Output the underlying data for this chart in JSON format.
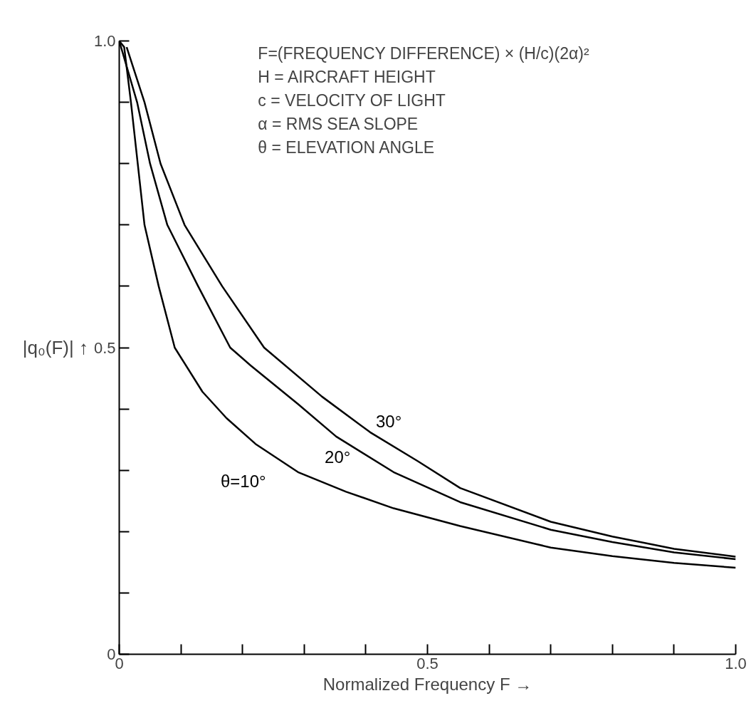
{
  "chart_data": {
    "type": "line",
    "xlabel": "Normalized Frequency F →",
    "ylabel": "|q₀(F)| ↑",
    "annotations": [
      "F=(FREQUENCY DIFFERENCE) × (H/c)(2α)²",
      "H = AIRCRAFT HEIGHT",
      "c = VELOCITY OF LIGHT",
      "α = RMS SEA SLOPE",
      "θ = ELEVATION ANGLE"
    ],
    "series": [
      {
        "name": "θ=10°",
        "color": "#000000",
        "x": [
          0,
          0.008,
          0.019,
          0.03,
          0.041,
          0.064,
          0.09,
          0.135,
          0.174,
          0.221,
          0.29,
          0.368,
          0.445,
          0.553,
          0.7,
          0.8,
          0.9,
          1.0
        ],
        "values": [
          1.0,
          0.99,
          0.9,
          0.8,
          0.7,
          0.6,
          0.5,
          0.428,
          0.385,
          0.343,
          0.297,
          0.265,
          0.238,
          0.209,
          0.174,
          0.16,
          0.149,
          0.141
        ]
      },
      {
        "name": "20°",
        "color": "#000000",
        "x": [
          0,
          0.029,
          0.05,
          0.078,
          0.128,
          0.18,
          0.213,
          0.29,
          0.352,
          0.445,
          0.553,
          0.7,
          0.8,
          0.9,
          1.0
        ],
        "values": [
          1.0,
          0.9,
          0.8,
          0.7,
          0.6,
          0.5,
          0.471,
          0.408,
          0.355,
          0.297,
          0.248,
          0.203,
          0.183,
          0.166,
          0.155
        ]
      },
      {
        "name": "30°",
        "color": "#000000",
        "x": [
          0.012,
          0.041,
          0.067,
          0.106,
          0.167,
          0.235,
          0.329,
          0.407,
          0.484,
          0.553,
          0.7,
          0.8,
          0.9,
          1.0
        ],
        "values": [
          0.99,
          0.9,
          0.8,
          0.7,
          0.6,
          0.5,
          0.42,
          0.362,
          0.315,
          0.271,
          0.216,
          0.192,
          0.172,
          0.159
        ]
      }
    ],
    "xlim": [
      0,
      1.0
    ],
    "ylim": [
      0,
      1.0
    ],
    "xticks": [
      0,
      {
        "value": 0.1,
        "label": null
      },
      {
        "value": 0.2,
        "label": null
      },
      {
        "value": 0.3,
        "label": null
      },
      {
        "value": 0.4,
        "label": null
      },
      0.5,
      {
        "value": 0.6,
        "label": null
      },
      {
        "value": 0.7,
        "label": null
      },
      {
        "value": 0.8,
        "label": null
      },
      {
        "value": 0.9,
        "label": null
      },
      {
        "value": 1,
        "label": "1.0"
      }
    ],
    "yticks": [
      0,
      {
        "value": 0.1,
        "label": null
      },
      {
        "value": 0.2,
        "label": null
      },
      {
        "value": 0.3,
        "label": null
      },
      {
        "value": 0.4,
        "label": null
      },
      0.5,
      {
        "value": 0.6,
        "label": null
      },
      {
        "value": 0.7,
        "label": null
      },
      {
        "value": 0.8,
        "label": null
      },
      {
        "value": 0.9,
        "label": null
      },
      {
        "value": 1,
        "label": "1.0"
      }
    ],
    "grid": false,
    "legend": false,
    "marker": "none",
    "line_style": "solid"
  }
}
